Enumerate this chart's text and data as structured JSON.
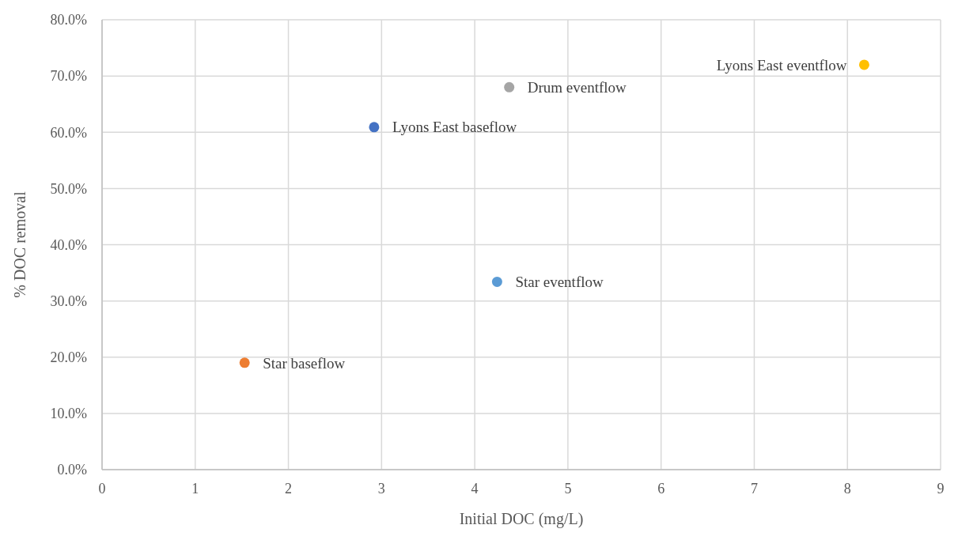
{
  "chart_data": {
    "type": "scatter",
    "xlabel": "Initial DOC (mg/L)",
    "ylabel": "% DOC removal",
    "xlim": [
      0,
      9
    ],
    "xticks": [
      0,
      1,
      2,
      3,
      4,
      5,
      6,
      7,
      8,
      9
    ],
    "ylim": [
      0,
      80
    ],
    "yticks": [
      {
        "value": 0,
        "label": "0.0%"
      },
      {
        "value": 10,
        "label": "10.0%"
      },
      {
        "value": 20,
        "label": "20.0%"
      },
      {
        "value": 30,
        "label": "30.0%"
      },
      {
        "value": 40,
        "label": "40.0%"
      },
      {
        "value": 50,
        "label": "50.0%"
      },
      {
        "value": 60,
        "label": "60.0%"
      },
      {
        "value": 70,
        "label": "70.0%"
      },
      {
        "value": 80,
        "label": "80.0%"
      }
    ],
    "grid": true,
    "marker": "circle",
    "series": [
      {
        "name": "Star baseflow",
        "color": "#ed7d31",
        "x": [
          1.53
        ],
        "values": [
          19.0
        ]
      },
      {
        "name": "Lyons East baseflow",
        "color": "#4472c4",
        "x": [
          2.92
        ],
        "values": [
          60.9
        ]
      },
      {
        "name": "Drum eventflow",
        "color": "#a5a5a5",
        "x": [
          4.37
        ],
        "values": [
          68.0
        ]
      },
      {
        "name": "Star eventflow",
        "color": "#5b9bd5",
        "x": [
          4.24
        ],
        "values": [
          33.4
        ]
      },
      {
        "name": "Lyons East eventflow",
        "color": "#ffc000",
        "x": [
          8.18
        ],
        "values": [
          72.0
        ]
      }
    ]
  }
}
